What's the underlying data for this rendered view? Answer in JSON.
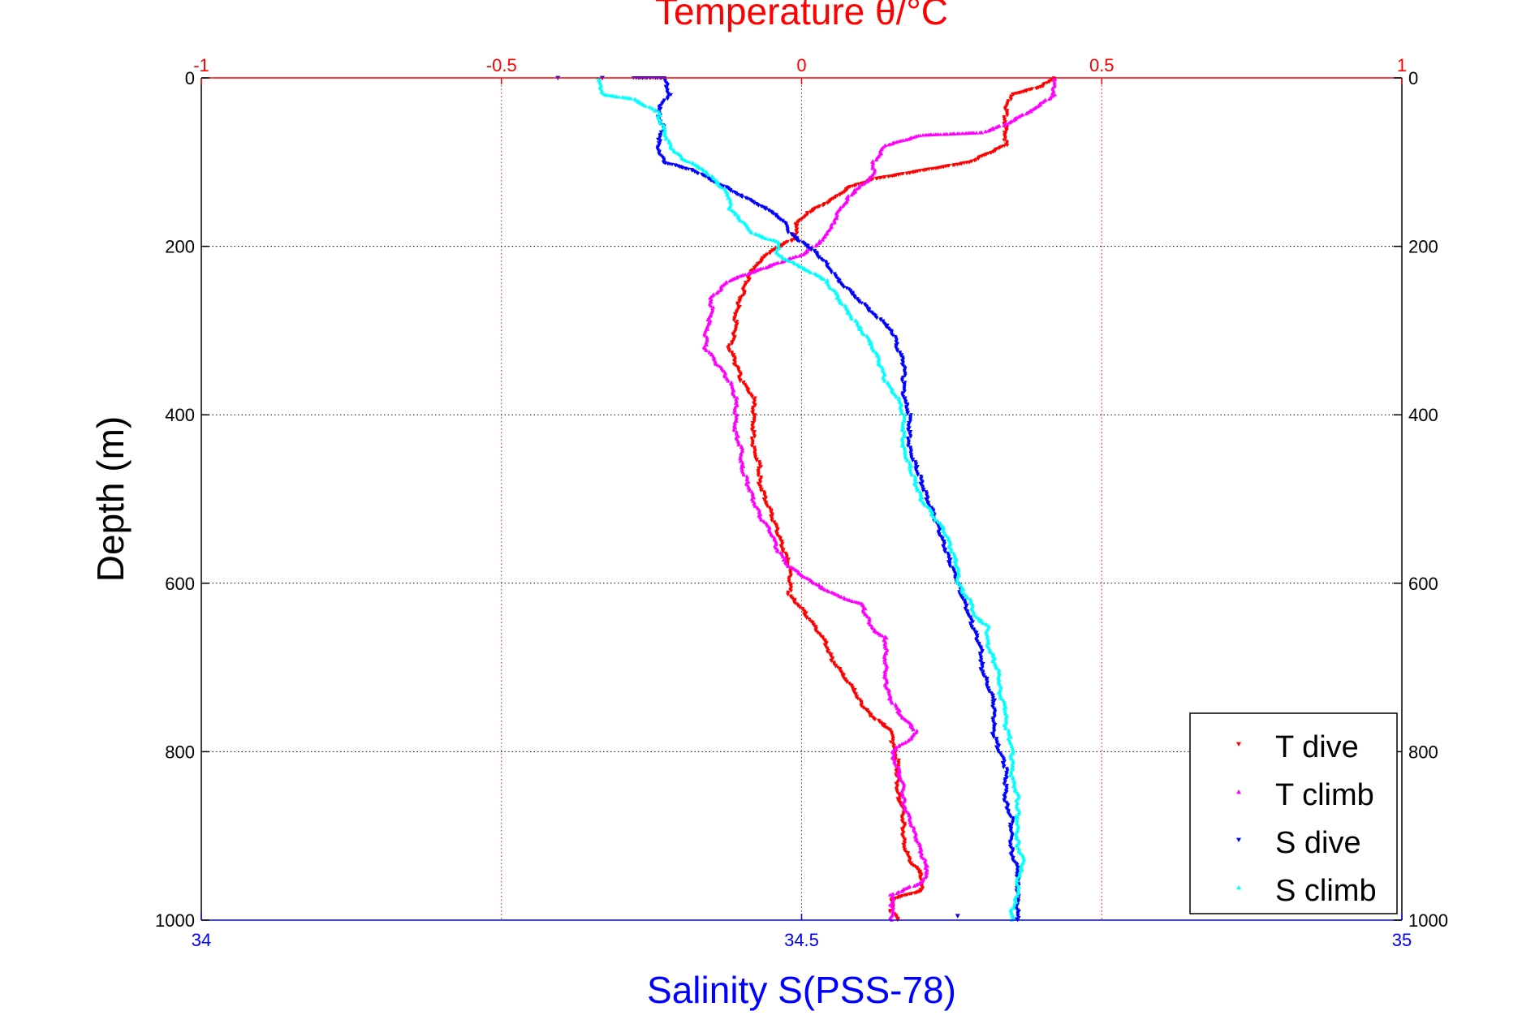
{
  "chart_data": {
    "type": "scatter",
    "title_top": "Temperature θ/°C",
    "xlabel_bottom": "Salinity S(PSS-78)",
    "ylabel": "Depth (m)",
    "x_top": {
      "label": "Temperature θ/°C",
      "lim": [
        -1,
        1
      ],
      "ticks": [
        "-1",
        "-0.5",
        "0",
        "0.5",
        "1"
      ],
      "tick_values": [
        -1,
        -0.5,
        0,
        0.5,
        1
      ],
      "color": "#ff0000"
    },
    "x_bottom": {
      "label": "Salinity S(PSS-78)",
      "lim": [
        34,
        35
      ],
      "ticks": [
        "34",
        "34.5",
        "35"
      ],
      "tick_values": [
        34,
        34.5,
        35
      ],
      "color": "#0000ff"
    },
    "y": {
      "label": "Depth (m)",
      "lim": [
        0,
        1000
      ],
      "reversed": true,
      "ticks": [
        "0",
        "200",
        "400",
        "600",
        "800",
        "1000"
      ],
      "tick_values": [
        0,
        200,
        400,
        600,
        800,
        1000
      ]
    },
    "grid": true,
    "legend_position": "bottom-right",
    "series": [
      {
        "name": "T dive",
        "axis": "top",
        "color": "#ff0000",
        "marker": "triangle-down",
        "points": [
          [
            0.42,
            0
          ],
          [
            0.4,
            10
          ],
          [
            0.35,
            20
          ],
          [
            0.34,
            40
          ],
          [
            0.34,
            60
          ],
          [
            0.34,
            80
          ],
          [
            0.28,
            100
          ],
          [
            0.2,
            110
          ],
          [
            0.12,
            120
          ],
          [
            0.08,
            130
          ],
          [
            0.05,
            145
          ],
          [
            0.01,
            160
          ],
          [
            -0.01,
            175
          ],
          [
            -0.01,
            190
          ],
          [
            -0.05,
            205
          ],
          [
            -0.08,
            225
          ],
          [
            -0.09,
            240
          ],
          [
            -0.1,
            260
          ],
          [
            -0.11,
            280
          ],
          [
            -0.11,
            300
          ],
          [
            -0.12,
            320
          ],
          [
            -0.11,
            340
          ],
          [
            -0.1,
            360
          ],
          [
            -0.08,
            380
          ],
          [
            -0.08,
            400
          ],
          [
            -0.08,
            420
          ],
          [
            -0.08,
            440
          ],
          [
            -0.07,
            460
          ],
          [
            -0.07,
            480
          ],
          [
            -0.06,
            500
          ],
          [
            -0.05,
            520
          ],
          [
            -0.04,
            540
          ],
          [
            -0.03,
            560
          ],
          [
            -0.02,
            580
          ],
          [
            -0.02,
            600
          ],
          [
            -0.02,
            615
          ],
          [
            0.0,
            630
          ],
          [
            0.02,
            650
          ],
          [
            0.04,
            670
          ],
          [
            0.05,
            690
          ],
          [
            0.07,
            710
          ],
          [
            0.09,
            730
          ],
          [
            0.1,
            745
          ],
          [
            0.12,
            760
          ],
          [
            0.15,
            775
          ],
          [
            0.15,
            790
          ],
          [
            0.16,
            810
          ],
          [
            0.16,
            830
          ],
          [
            0.16,
            850
          ],
          [
            0.17,
            870
          ],
          [
            0.17,
            890
          ],
          [
            0.17,
            910
          ],
          [
            0.18,
            930
          ],
          [
            0.2,
            945
          ],
          [
            0.2,
            965
          ],
          [
            0.15,
            975
          ],
          [
            0.15,
            990
          ],
          [
            0.16,
            1000
          ]
        ]
      },
      {
        "name": "T climb",
        "axis": "top",
        "color": "#ff00ff",
        "marker": "triangle-up",
        "points": [
          [
            0.42,
            0
          ],
          [
            0.42,
            20
          ],
          [
            0.38,
            40
          ],
          [
            0.34,
            55
          ],
          [
            0.3,
            65
          ],
          [
            0.2,
            68
          ],
          [
            0.14,
            80
          ],
          [
            0.12,
            100
          ],
          [
            0.12,
            115
          ],
          [
            0.08,
            140
          ],
          [
            0.06,
            160
          ],
          [
            0.05,
            175
          ],
          [
            0.04,
            185
          ],
          [
            0.03,
            195
          ],
          [
            0.0,
            210
          ],
          [
            -0.06,
            225
          ],
          [
            -0.12,
            240
          ],
          [
            -0.15,
            260
          ],
          [
            -0.15,
            280
          ],
          [
            -0.16,
            300
          ],
          [
            -0.16,
            320
          ],
          [
            -0.14,
            340
          ],
          [
            -0.12,
            360
          ],
          [
            -0.11,
            380
          ],
          [
            -0.11,
            400
          ],
          [
            -0.11,
            420
          ],
          [
            -0.1,
            440
          ],
          [
            -0.1,
            460
          ],
          [
            -0.09,
            480
          ],
          [
            -0.08,
            500
          ],
          [
            -0.07,
            520
          ],
          [
            -0.05,
            540
          ],
          [
            -0.04,
            560
          ],
          [
            -0.02,
            580
          ],
          [
            0.02,
            600
          ],
          [
            0.06,
            615
          ],
          [
            0.1,
            625
          ],
          [
            0.11,
            640
          ],
          [
            0.12,
            655
          ],
          [
            0.14,
            665
          ],
          [
            0.14,
            685
          ],
          [
            0.14,
            705
          ],
          [
            0.14,
            720
          ],
          [
            0.15,
            740
          ],
          [
            0.17,
            760
          ],
          [
            0.19,
            775
          ],
          [
            0.18,
            785
          ],
          [
            0.15,
            800
          ],
          [
            0.16,
            820
          ],
          [
            0.17,
            840
          ],
          [
            0.17,
            860
          ],
          [
            0.18,
            880
          ],
          [
            0.19,
            900
          ],
          [
            0.2,
            920
          ],
          [
            0.21,
            940
          ],
          [
            0.2,
            955
          ],
          [
            0.15,
            970
          ],
          [
            0.15,
            985
          ],
          [
            0.15,
            1000
          ]
        ]
      },
      {
        "name": "S dive",
        "axis": "bottom",
        "color": "#0000ff",
        "marker": "triangle-down",
        "points": [
          [
            34.36,
            0
          ],
          [
            34.385,
            0
          ],
          [
            34.39,
            20
          ],
          [
            34.38,
            40
          ],
          [
            34.385,
            60
          ],
          [
            34.38,
            80
          ],
          [
            34.385,
            100
          ],
          [
            34.41,
            110
          ],
          [
            34.43,
            125
          ],
          [
            34.45,
            140
          ],
          [
            34.47,
            155
          ],
          [
            34.485,
            170
          ],
          [
            34.49,
            185
          ],
          [
            34.5,
            195
          ],
          [
            34.51,
            205
          ],
          [
            34.52,
            220
          ],
          [
            34.53,
            240
          ],
          [
            34.545,
            260
          ],
          [
            34.56,
            280
          ],
          [
            34.575,
            300
          ],
          [
            34.58,
            320
          ],
          [
            34.585,
            340
          ],
          [
            34.585,
            360
          ],
          [
            34.585,
            380
          ],
          [
            34.59,
            400
          ],
          [
            34.59,
            420
          ],
          [
            34.59,
            440
          ],
          [
            34.595,
            460
          ],
          [
            34.6,
            480
          ],
          [
            34.605,
            500
          ],
          [
            34.61,
            520
          ],
          [
            34.615,
            540
          ],
          [
            34.62,
            560
          ],
          [
            34.625,
            580
          ],
          [
            34.63,
            600
          ],
          [
            34.635,
            620
          ],
          [
            34.64,
            640
          ],
          [
            34.645,
            660
          ],
          [
            34.65,
            680
          ],
          [
            34.65,
            700
          ],
          [
            34.655,
            720
          ],
          [
            34.66,
            740
          ],
          [
            34.66,
            760
          ],
          [
            34.66,
            780
          ],
          [
            34.665,
            800
          ],
          [
            34.67,
            820
          ],
          [
            34.67,
            840
          ],
          [
            34.67,
            860
          ],
          [
            34.675,
            880
          ],
          [
            34.675,
            900
          ],
          [
            34.675,
            920
          ],
          [
            34.68,
            940
          ],
          [
            34.68,
            960
          ],
          [
            34.68,
            980
          ],
          [
            34.68,
            1000
          ]
        ]
      },
      {
        "name": "S climb",
        "axis": "bottom",
        "color": "#00ffff",
        "marker": "triangle-up",
        "points": [
          [
            34.33,
            0
          ],
          [
            34.335,
            20
          ],
          [
            34.36,
            25
          ],
          [
            34.38,
            40
          ],
          [
            34.385,
            60
          ],
          [
            34.39,
            80
          ],
          [
            34.4,
            95
          ],
          [
            34.42,
            110
          ],
          [
            34.43,
            125
          ],
          [
            34.44,
            140
          ],
          [
            34.44,
            155
          ],
          [
            34.45,
            170
          ],
          [
            34.46,
            185
          ],
          [
            34.48,
            195
          ],
          [
            34.48,
            210
          ],
          [
            34.5,
            225
          ],
          [
            34.52,
            240
          ],
          [
            34.53,
            260
          ],
          [
            34.54,
            280
          ],
          [
            34.55,
            300
          ],
          [
            34.56,
            320
          ],
          [
            34.565,
            340
          ],
          [
            34.57,
            360
          ],
          [
            34.58,
            380
          ],
          [
            34.585,
            400
          ],
          [
            34.585,
            420
          ],
          [
            34.585,
            440
          ],
          [
            34.59,
            460
          ],
          [
            34.595,
            480
          ],
          [
            34.6,
            500
          ],
          [
            34.61,
            520
          ],
          [
            34.62,
            540
          ],
          [
            34.625,
            560
          ],
          [
            34.63,
            580
          ],
          [
            34.63,
            600
          ],
          [
            34.64,
            620
          ],
          [
            34.645,
            640
          ],
          [
            34.655,
            650
          ],
          [
            34.655,
            670
          ],
          [
            34.66,
            690
          ],
          [
            34.665,
            710
          ],
          [
            34.665,
            730
          ],
          [
            34.67,
            750
          ],
          [
            34.67,
            770
          ],
          [
            34.675,
            790
          ],
          [
            34.675,
            810
          ],
          [
            34.675,
            830
          ],
          [
            34.68,
            850
          ],
          [
            34.68,
            870
          ],
          [
            34.68,
            890
          ],
          [
            34.68,
            910
          ],
          [
            34.685,
            930
          ],
          [
            34.68,
            950
          ],
          [
            34.68,
            970
          ],
          [
            34.675,
            990
          ],
          [
            34.675,
            1000
          ]
        ]
      }
    ],
    "outliers": [
      {
        "series": "S dive",
        "points": [
          [
            34.297,
            0
          ],
          [
            34.334,
            0
          ],
          [
            34.63,
            995
          ]
        ]
      }
    ]
  },
  "legend": {
    "items": [
      "T dive",
      "T climb",
      "S dive",
      "S climb"
    ]
  }
}
